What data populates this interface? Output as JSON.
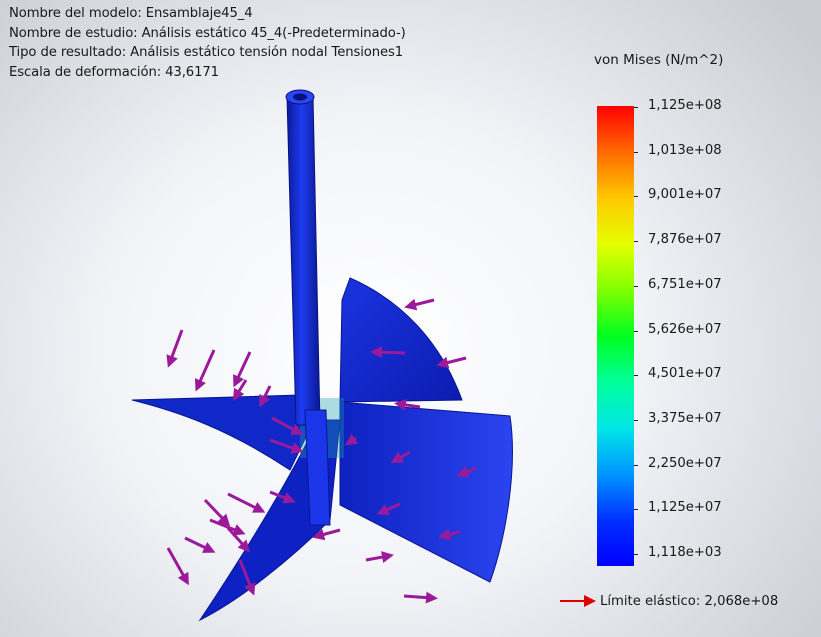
{
  "info": {
    "line1": "Nombre del modelo: Ensamblaje45_4",
    "line2": "Nombre de estudio: Análisis estático 45_4(-Predeterminado-)",
    "line3": "Tipo de resultado: Análisis estático tensión nodal Tensiones1",
    "line4": "Escala de deformación: 43,6171"
  },
  "legend": {
    "title": "von Mises (N/m^2)",
    "ticks": [
      "1,125e+08",
      "1,013e+08",
      "9,001e+07",
      "7,876e+07",
      "6,751e+07",
      "5,626e+07",
      "4,501e+07",
      "3,375e+07",
      "2,250e+07",
      "1,125e+07",
      "1,118e+03"
    ],
    "max_color": "#ff0000",
    "min_color": "#0000ff"
  },
  "yield": {
    "label": "Límite elástico: 2,068e+08",
    "arrow_color": "#e00000"
  },
  "model": {
    "part_color": "#1428d8",
    "load_arrow_color": "#9a1a9a"
  }
}
